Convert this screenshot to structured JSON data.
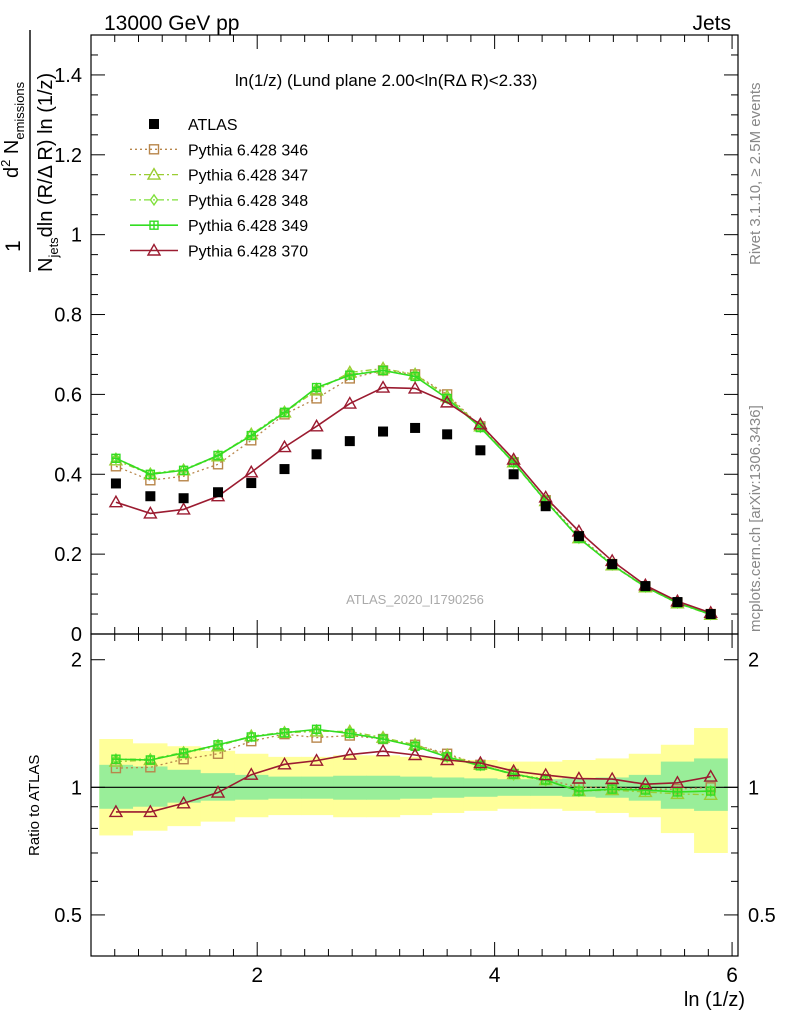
{
  "header": {
    "energy": "13000 GeV pp",
    "category": "Jets",
    "plot_title": "ln(1/z) (Lund plane 2.00<ln(RΔ R)<2.33)",
    "analysis_id": "ATLAS_2020_I1790256",
    "side_rivet": "Rivet 3.1.10, ≥ 2.5M events",
    "side_mcplots": "mcplots.cern.ch [arXiv:1306.3436]"
  },
  "colors": {
    "atlas": "#000000",
    "p346": "#b8864b",
    "p347": "#9acd32",
    "p348": "#7fe03a",
    "p349": "#33dd22",
    "p370": "#9b1b30",
    "band_outer": "#ffff99",
    "band_inner": "#99ee99"
  },
  "chart_data": [
    {
      "type": "scatter",
      "panel": "main",
      "ylabel": "1/N_jets d²N_emissions/dln(R/ΔR) ln(1/z)",
      "xlim": [
        0.6,
        6.05
      ],
      "ylim": [
        0,
        1.5
      ],
      "y_ticks": [
        "0",
        "0.2",
        "0.4",
        "0.6",
        "0.8",
        "1",
        "1.2",
        "1.4"
      ],
      "x": [
        0.81,
        1.1,
        1.38,
        1.67,
        1.95,
        2.23,
        2.5,
        2.78,
        3.06,
        3.33,
        3.6,
        3.88,
        4.16,
        4.43,
        4.71,
        4.99,
        5.27,
        5.54,
        5.82
      ],
      "series": [
        {
          "name": "ATLAS",
          "key": "atlas",
          "style": "data",
          "values": [
            0.377,
            0.345,
            0.34,
            0.355,
            0.378,
            0.413,
            0.45,
            0.483,
            0.507,
            0.516,
            0.5,
            0.46,
            0.4,
            0.32,
            0.245,
            0.175,
            0.12,
            0.08,
            0.05
          ]
        },
        {
          "name": "Pythia 6.428 346",
          "key": "p346",
          "style": "square-dotted",
          "values": [
            0.42,
            0.385,
            0.395,
            0.425,
            0.485,
            0.55,
            0.59,
            0.64,
            0.66,
            0.65,
            0.6,
            0.52,
            0.43,
            0.335,
            0.245,
            0.175,
            0.118,
            0.078,
            0.05
          ]
        },
        {
          "name": "Pythia 6.428 347",
          "key": "p347",
          "style": "triangle-dashdot",
          "values": [
            0.435,
            0.4,
            0.41,
            0.445,
            0.5,
            0.555,
            0.61,
            0.655,
            0.665,
            0.65,
            0.595,
            0.52,
            0.43,
            0.333,
            0.24,
            0.172,
            0.117,
            0.077,
            0.048
          ]
        },
        {
          "name": "Pythia 6.428 348",
          "key": "p348",
          "style": "diamond-dashdot",
          "values": [
            0.44,
            0.402,
            0.412,
            0.447,
            0.5,
            0.557,
            0.615,
            0.65,
            0.66,
            0.645,
            0.59,
            0.518,
            0.428,
            0.332,
            0.24,
            0.173,
            0.118,
            0.078,
            0.049
          ]
        },
        {
          "name": "Pythia 6.428 349",
          "key": "p349",
          "style": "cross-solid",
          "values": [
            0.44,
            0.4,
            0.41,
            0.447,
            0.497,
            0.555,
            0.617,
            0.648,
            0.66,
            0.645,
            0.59,
            0.517,
            0.43,
            0.333,
            0.24,
            0.173,
            0.118,
            0.078,
            0.049
          ]
        },
        {
          "name": "Pythia 6.428 370",
          "key": "p370",
          "style": "triangle-solid",
          "values": [
            0.33,
            0.302,
            0.312,
            0.345,
            0.405,
            0.468,
            0.52,
            0.577,
            0.617,
            0.615,
            0.58,
            0.525,
            0.437,
            0.342,
            0.257,
            0.183,
            0.122,
            0.082,
            0.053
          ]
        }
      ],
      "legend_position": "top-left"
    },
    {
      "type": "line",
      "panel": "ratio",
      "ylabel": "Ratio to ATLAS",
      "xlabel": "ln (1/z)",
      "xlim": [
        0.6,
        6.05
      ],
      "ylim": [
        0.4,
        2.3
      ],
      "log_y": true,
      "y_ticks": [
        "0.5",
        "1",
        "2"
      ],
      "x_ticks": [
        "2",
        "4",
        "6"
      ],
      "bin_edges": [
        0.67,
        0.95,
        1.24,
        1.52,
        1.81,
        2.09,
        2.37,
        2.64,
        2.92,
        3.2,
        3.47,
        3.74,
        4.02,
        4.3,
        4.57,
        4.85,
        5.13,
        5.4,
        5.68,
        5.96
      ],
      "band_inner": {
        "lo": [
          0.89,
          0.9,
          0.92,
          0.93,
          0.935,
          0.94,
          0.94,
          0.935,
          0.935,
          0.94,
          0.945,
          0.95,
          0.955,
          0.955,
          0.95,
          0.945,
          0.93,
          0.89,
          0.88
        ],
        "hi": [
          1.13,
          1.12,
          1.1,
          1.08,
          1.07,
          1.06,
          1.06,
          1.065,
          1.065,
          1.06,
          1.055,
          1.05,
          1.045,
          1.045,
          1.05,
          1.055,
          1.07,
          1.15,
          1.17
        ]
      },
      "band_outer": {
        "lo": [
          0.77,
          0.79,
          0.81,
          0.83,
          0.85,
          0.86,
          0.86,
          0.85,
          0.85,
          0.86,
          0.87,
          0.88,
          0.89,
          0.89,
          0.88,
          0.87,
          0.85,
          0.78,
          0.7
        ]
      },
      "band_outer_hi": [
        1.3,
        1.27,
        1.25,
        1.22,
        1.2,
        1.18,
        1.18,
        1.19,
        1.19,
        1.18,
        1.17,
        1.16,
        1.15,
        1.15,
        1.16,
        1.17,
        1.2,
        1.26,
        1.38
      ],
      "series": [
        {
          "key": "p346",
          "values": [
            1.11,
            1.115,
            1.165,
            1.2,
            1.285,
            1.335,
            1.31,
            1.325,
            1.3,
            1.26,
            1.2,
            1.13,
            1.075,
            1.045,
            1.0,
            1.0,
            0.99,
            0.99,
            1.0
          ]
        },
        {
          "key": "p347",
          "values": [
            1.15,
            1.16,
            1.205,
            1.25,
            1.32,
            1.345,
            1.355,
            1.355,
            1.31,
            1.26,
            1.19,
            1.13,
            1.075,
            1.04,
            0.98,
            0.985,
            0.975,
            0.965,
            0.96
          ]
        },
        {
          "key": "p348",
          "values": [
            1.165,
            1.165,
            1.21,
            1.26,
            1.32,
            1.35,
            1.365,
            1.345,
            1.3,
            1.25,
            1.18,
            1.127,
            1.07,
            1.037,
            0.98,
            0.99,
            0.985,
            0.975,
            0.98
          ]
        },
        {
          "key": "p349",
          "values": [
            1.165,
            1.16,
            1.205,
            1.26,
            1.315,
            1.345,
            1.37,
            1.34,
            1.3,
            1.25,
            1.18,
            1.124,
            1.075,
            1.04,
            0.98,
            0.99,
            0.985,
            0.975,
            0.98
          ]
        },
        {
          "key": "p370",
          "values": [
            0.875,
            0.875,
            0.917,
            0.972,
            1.071,
            1.133,
            1.156,
            1.195,
            1.217,
            1.192,
            1.16,
            1.141,
            1.092,
            1.069,
            1.049,
            1.046,
            1.017,
            1.025,
            1.06
          ]
        }
      ]
    }
  ]
}
